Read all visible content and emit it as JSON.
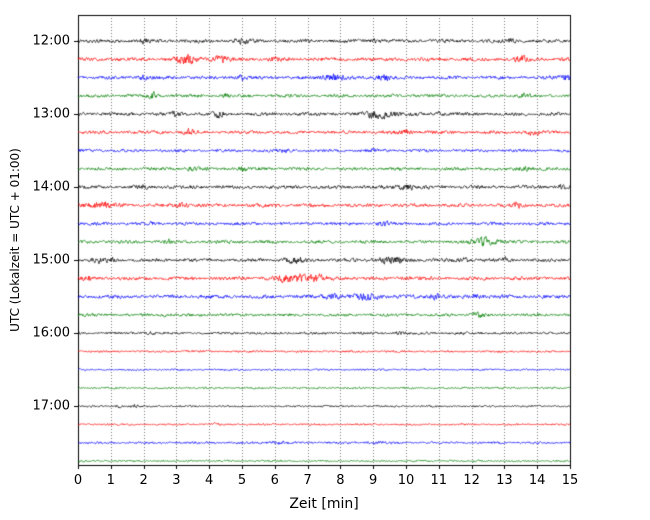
{
  "chart_data": {
    "type": "line",
    "subtype": "helicorder-seismogram",
    "title": "",
    "xlabel": "Zeit  [min]",
    "ylabel": "UTC (Lokalzeit = UTC + 01:00)",
    "xlim": [
      0,
      15
    ],
    "x_ticks": [
      "0",
      "1",
      "2",
      "3",
      "4",
      "5",
      "6",
      "7",
      "8",
      "9",
      "10",
      "11",
      "12",
      "13",
      "14",
      "15"
    ],
    "y_ticks": [
      "12:00",
      "13:00",
      "14:00",
      "15:00",
      "16:00",
      "17:00"
    ],
    "grid": "vertical-dotted",
    "legend": "none",
    "trace_duration_min": 15,
    "n_traces": 24,
    "trace_colors_cycle": [
      "#000000",
      "#ff0000",
      "#0000ff",
      "#008000"
    ],
    "traces": [
      {
        "start": "12:00",
        "color": "#000000",
        "noise": 1.5,
        "bursts": [
          {
            "t": 2.0,
            "w": 0.1,
            "a": 2.0
          },
          {
            "t": 5.0,
            "w": 0.15,
            "a": 2.0
          },
          {
            "t": 9.0,
            "w": 0.1,
            "a": 1.5
          },
          {
            "t": 13.2,
            "w": 0.1,
            "a": 1.5
          }
        ]
      },
      {
        "start": "12:15",
        "color": "#ff0000",
        "noise": 1.6,
        "bursts": [
          {
            "t": 3.3,
            "w": 0.25,
            "a": 3.5
          },
          {
            "t": 4.3,
            "w": 0.2,
            "a": 2.5
          },
          {
            "t": 6.0,
            "w": 0.1,
            "a": 1.5
          },
          {
            "t": 13.5,
            "w": 0.12,
            "a": 2.5
          }
        ]
      },
      {
        "start": "12:30",
        "color": "#0000ff",
        "noise": 1.5,
        "bursts": [
          {
            "t": 2.0,
            "w": 0.1,
            "a": 1.5
          },
          {
            "t": 5.0,
            "w": 0.12,
            "a": 1.8
          },
          {
            "t": 7.8,
            "w": 0.2,
            "a": 3.0
          },
          {
            "t": 9.3,
            "w": 0.15,
            "a": 2.5
          },
          {
            "t": 14.9,
            "w": 0.1,
            "a": 2.0
          }
        ]
      },
      {
        "start": "12:45",
        "color": "#008000",
        "noise": 1.4,
        "bursts": [
          {
            "t": 2.3,
            "w": 0.12,
            "a": 2.2
          },
          {
            "t": 4.5,
            "w": 0.1,
            "a": 1.5
          },
          {
            "t": 13.6,
            "w": 0.1,
            "a": 1.8
          }
        ]
      },
      {
        "start": "13:00",
        "color": "#000000",
        "noise": 1.5,
        "bursts": [
          {
            "t": 3.0,
            "w": 0.1,
            "a": 1.5
          },
          {
            "t": 4.3,
            "w": 0.12,
            "a": 2.0
          },
          {
            "t": 9.3,
            "w": 0.35,
            "a": 3.5
          },
          {
            "t": 11.0,
            "w": 0.1,
            "a": 1.2
          }
        ]
      },
      {
        "start": "13:15",
        "color": "#ff0000",
        "noise": 1.5,
        "bursts": [
          {
            "t": 3.4,
            "w": 0.12,
            "a": 2.2
          },
          {
            "t": 10.0,
            "w": 0.1,
            "a": 1.2
          },
          {
            "t": 13.9,
            "w": 0.12,
            "a": 2.0
          }
        ]
      },
      {
        "start": "13:30",
        "color": "#0000ff",
        "noise": 1.3,
        "bursts": [
          {
            "t": 6.3,
            "w": 0.1,
            "a": 1.2
          },
          {
            "t": 9.0,
            "w": 0.1,
            "a": 1.0
          }
        ]
      },
      {
        "start": "13:45",
        "color": "#008000",
        "noise": 1.4,
        "bursts": [
          {
            "t": 3.5,
            "w": 0.12,
            "a": 1.8
          },
          {
            "t": 5.0,
            "w": 0.1,
            "a": 1.5
          },
          {
            "t": 13.6,
            "w": 0.15,
            "a": 2.2
          }
        ]
      },
      {
        "start": "14:00",
        "color": "#000000",
        "noise": 1.5,
        "bursts": [
          {
            "t": 2.0,
            "w": 0.1,
            "a": 1.2
          },
          {
            "t": 10.0,
            "w": 0.2,
            "a": 2.0
          },
          {
            "t": 14.7,
            "w": 0.1,
            "a": 1.8
          }
        ]
      },
      {
        "start": "14:15",
        "color": "#ff0000",
        "noise": 1.5,
        "bursts": [
          {
            "t": 0.7,
            "w": 0.3,
            "a": 2.8
          },
          {
            "t": 3.2,
            "w": 0.12,
            "a": 1.8
          },
          {
            "t": 13.4,
            "w": 0.12,
            "a": 2.2
          }
        ]
      },
      {
        "start": "14:30",
        "color": "#0000ff",
        "noise": 1.4,
        "bursts": [
          {
            "t": 2.2,
            "w": 0.1,
            "a": 1.2
          },
          {
            "t": 9.3,
            "w": 0.12,
            "a": 1.4
          }
        ]
      },
      {
        "start": "14:45",
        "color": "#008000",
        "noise": 1.4,
        "bursts": [
          {
            "t": 2.7,
            "w": 0.12,
            "a": 1.8
          },
          {
            "t": 12.4,
            "w": 0.25,
            "a": 3.2
          }
        ]
      },
      {
        "start": "15:00",
        "color": "#000000",
        "noise": 1.5,
        "bursts": [
          {
            "t": 0.6,
            "w": 0.12,
            "a": 2.0
          },
          {
            "t": 1.0,
            "w": 0.1,
            "a": 1.6
          },
          {
            "t": 6.6,
            "w": 0.2,
            "a": 2.2
          },
          {
            "t": 9.5,
            "w": 0.3,
            "a": 2.6
          },
          {
            "t": 11.8,
            "w": 0.12,
            "a": 1.6
          },
          {
            "t": 13.0,
            "w": 0.1,
            "a": 1.4
          }
        ]
      },
      {
        "start": "15:15",
        "color": "#ff0000",
        "noise": 1.5,
        "bursts": [
          {
            "t": 0.3,
            "w": 0.1,
            "a": 1.8
          },
          {
            "t": 6.6,
            "w": 0.35,
            "a": 4.0
          },
          {
            "t": 7.3,
            "w": 0.2,
            "a": 2.5
          },
          {
            "t": 10.0,
            "w": 0.1,
            "a": 1.2
          }
        ]
      },
      {
        "start": "15:30",
        "color": "#0000ff",
        "noise": 1.6,
        "bursts": [
          {
            "t": 7.7,
            "w": 0.15,
            "a": 2.2
          },
          {
            "t": 8.8,
            "w": 0.3,
            "a": 2.4
          },
          {
            "t": 10.9,
            "w": 0.15,
            "a": 2.2
          },
          {
            "t": 12.2,
            "w": 0.12,
            "a": 2.0
          }
        ]
      },
      {
        "start": "15:45",
        "color": "#008000",
        "noise": 1.3,
        "bursts": [
          {
            "t": 2.7,
            "w": 0.1,
            "a": 1.2
          },
          {
            "t": 12.2,
            "w": 0.12,
            "a": 1.8
          }
        ]
      },
      {
        "start": "16:00",
        "color": "#000000",
        "noise": 1.1,
        "bursts": [
          {
            "t": 2.2,
            "w": 0.08,
            "a": 0.8
          },
          {
            "t": 9.8,
            "w": 0.1,
            "a": 1.0
          }
        ]
      },
      {
        "start": "16:15",
        "color": "#ff0000",
        "noise": 0.9,
        "bursts": []
      },
      {
        "start": "16:30",
        "color": "#0000ff",
        "noise": 0.8,
        "bursts": []
      },
      {
        "start": "16:45",
        "color": "#008000",
        "noise": 0.8,
        "bursts": []
      },
      {
        "start": "17:00",
        "color": "#000000",
        "noise": 0.8,
        "bursts": [
          {
            "t": 1.2,
            "w": 0.08,
            "a": 1.2
          },
          {
            "t": 1.7,
            "w": 0.08,
            "a": 1.0
          }
        ]
      },
      {
        "start": "17:15",
        "color": "#ff0000",
        "noise": 0.8,
        "bursts": [
          {
            "t": 4.2,
            "w": 0.08,
            "a": 0.8
          }
        ]
      },
      {
        "start": "17:30",
        "color": "#0000ff",
        "noise": 1.0,
        "bursts": [
          {
            "t": 6.0,
            "w": 0.3,
            "a": 0.8
          },
          {
            "t": 9.0,
            "w": 0.2,
            "a": 0.6
          }
        ]
      },
      {
        "start": "17:45",
        "color": "#008000",
        "noise": 0.8,
        "bursts": []
      }
    ]
  }
}
